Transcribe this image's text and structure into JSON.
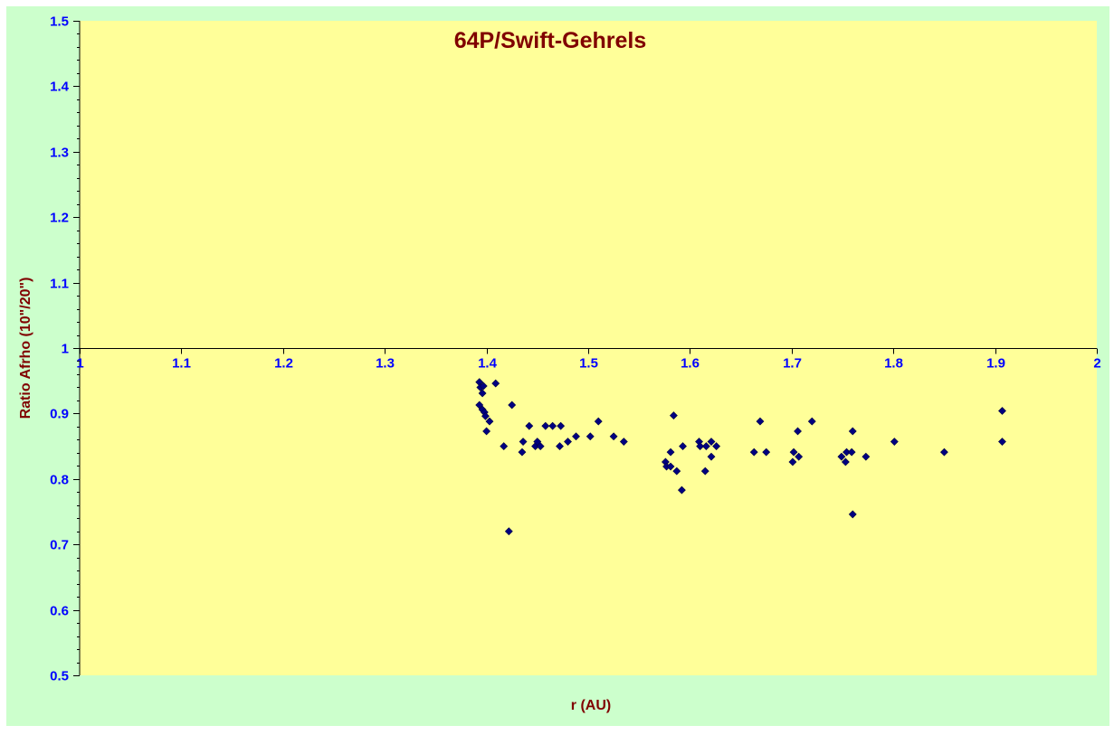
{
  "chart_data": {
    "type": "scatter",
    "title": "64P/Swift-Gehrels",
    "xlabel": "r (AU)",
    "ylabel": "Ratio Afrho (10\"/20\")",
    "xlim": [
      1,
      2
    ],
    "ylim": [
      0.5,
      1.5
    ],
    "x_axis_crosses_y": 1,
    "x_ticks": [
      1,
      1.1,
      1.2,
      1.3,
      1.4,
      1.5,
      1.6,
      1.7,
      1.8,
      1.9,
      2
    ],
    "x_tick_labels": [
      "1",
      "1.1",
      "1.2",
      "1.3",
      "1.4",
      "1.5",
      "1.6",
      "1.7",
      "1.8",
      "1.9",
      "2"
    ],
    "y_ticks": [
      0.5,
      0.6,
      0.7,
      0.8,
      0.9,
      1,
      1.1,
      1.2,
      1.3,
      1.4,
      1.5
    ],
    "y_tick_labels": [
      "0.5",
      "0.6",
      "0.7",
      "0.8",
      "0.9",
      "1",
      "1.1",
      "1.2",
      "1.3",
      "1.4",
      "1.5"
    ],
    "grid": false,
    "legend": "none",
    "colors": {
      "plot_background": "#ffff99",
      "chart_background": "#ccffcc",
      "marker": "#000080",
      "tick_labels": "#0000ff",
      "titles": "#800000"
    },
    "marker_shape": "diamond",
    "points": [
      {
        "x": 1.393,
        "y": 0.948
      },
      {
        "x": 1.394,
        "y": 0.94
      },
      {
        "x": 1.396,
        "y": 0.931
      },
      {
        "x": 1.397,
        "y": 0.942
      },
      {
        "x": 1.393,
        "y": 0.913
      },
      {
        "x": 1.396,
        "y": 0.906
      },
      {
        "x": 1.398,
        "y": 0.902
      },
      {
        "x": 1.399,
        "y": 0.896
      },
      {
        "x": 1.4,
        "y": 0.873
      },
      {
        "x": 1.403,
        "y": 0.888
      },
      {
        "x": 1.409,
        "y": 0.946
      },
      {
        "x": 1.417,
        "y": 0.85
      },
      {
        "x": 1.422,
        "y": 0.72
      },
      {
        "x": 1.425,
        "y": 0.913
      },
      {
        "x": 1.435,
        "y": 0.841
      },
      {
        "x": 1.436,
        "y": 0.857
      },
      {
        "x": 1.442,
        "y": 0.881
      },
      {
        "x": 1.448,
        "y": 0.85
      },
      {
        "x": 1.45,
        "y": 0.857
      },
      {
        "x": 1.453,
        "y": 0.85
      },
      {
        "x": 1.458,
        "y": 0.881
      },
      {
        "x": 1.465,
        "y": 0.881
      },
      {
        "x": 1.472,
        "y": 0.85
      },
      {
        "x": 1.473,
        "y": 0.881
      },
      {
        "x": 1.48,
        "y": 0.857
      },
      {
        "x": 1.488,
        "y": 0.865
      },
      {
        "x": 1.502,
        "y": 0.865
      },
      {
        "x": 1.51,
        "y": 0.888
      },
      {
        "x": 1.525,
        "y": 0.865
      },
      {
        "x": 1.535,
        "y": 0.857
      },
      {
        "x": 1.576,
        "y": 0.826
      },
      {
        "x": 1.577,
        "y": 0.819
      },
      {
        "x": 1.581,
        "y": 0.841
      },
      {
        "x": 1.581,
        "y": 0.819
      },
      {
        "x": 1.584,
        "y": 0.897
      },
      {
        "x": 1.587,
        "y": 0.812
      },
      {
        "x": 1.592,
        "y": 0.783
      },
      {
        "x": 1.593,
        "y": 0.85
      },
      {
        "x": 1.609,
        "y": 0.857
      },
      {
        "x": 1.61,
        "y": 0.85
      },
      {
        "x": 1.615,
        "y": 0.812
      },
      {
        "x": 1.616,
        "y": 0.85
      },
      {
        "x": 1.621,
        "y": 0.834
      },
      {
        "x": 1.621,
        "y": 0.857
      },
      {
        "x": 1.626,
        "y": 0.85
      },
      {
        "x": 1.663,
        "y": 0.841
      },
      {
        "x": 1.669,
        "y": 0.888
      },
      {
        "x": 1.675,
        "y": 0.841
      },
      {
        "x": 1.701,
        "y": 0.826
      },
      {
        "x": 1.702,
        "y": 0.841
      },
      {
        "x": 1.706,
        "y": 0.873
      },
      {
        "x": 1.707,
        "y": 0.834
      },
      {
        "x": 1.72,
        "y": 0.888
      },
      {
        "x": 1.749,
        "y": 0.834
      },
      {
        "x": 1.753,
        "y": 0.826
      },
      {
        "x": 1.754,
        "y": 0.841
      },
      {
        "x": 1.759,
        "y": 0.841
      },
      {
        "x": 1.76,
        "y": 0.873
      },
      {
        "x": 1.76,
        "y": 0.746
      },
      {
        "x": 1.773,
        "y": 0.834
      },
      {
        "x": 1.801,
        "y": 0.857
      },
      {
        "x": 1.85,
        "y": 0.841
      },
      {
        "x": 1.907,
        "y": 0.904
      },
      {
        "x": 1.907,
        "y": 0.857
      }
    ]
  }
}
